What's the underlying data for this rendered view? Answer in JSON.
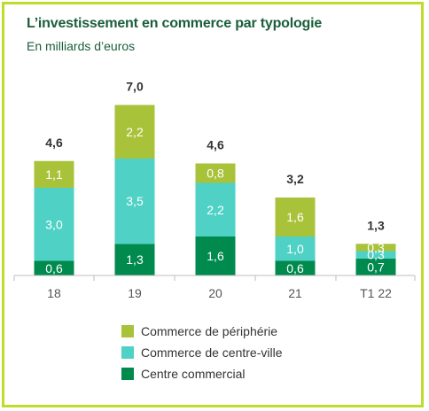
{
  "header": {
    "title": "L’investissement en commerce par typologie",
    "subtitle": "En milliards d’euros"
  },
  "colors": {
    "frame": "#bfdc2a",
    "title": "#1a5e3a"
  },
  "chart_data": {
    "type": "bar",
    "stacked": true,
    "title": "L’investissement en commerce par typologie",
    "subtitle": "En milliards d’euros",
    "categories": [
      "18",
      "19",
      "20",
      "21",
      "T1 22"
    ],
    "totals": [
      "4,6",
      "7,0",
      "4,6",
      "3,2",
      "1,3"
    ],
    "series": [
      {
        "name": "Centre commercial",
        "color": "#008a4e",
        "values": [
          0.6,
          1.3,
          1.6,
          0.6,
          0.7
        ],
        "labels": [
          "0,6",
          "1,3",
          "1,6",
          "0,6",
          "0,7"
        ]
      },
      {
        "name": "Commerce de centre-ville",
        "color": "#4fd1c5",
        "values": [
          3.0,
          3.5,
          2.2,
          1.0,
          0.3
        ],
        "labels": [
          "3,0",
          "3,5",
          "2,2",
          "1,0",
          "0,3"
        ]
      },
      {
        "name": "Commerce de périphérie",
        "color": "#a8c23a",
        "values": [
          1.1,
          2.2,
          0.8,
          1.6,
          0.3
        ],
        "labels": [
          "1,1",
          "2,2",
          "0,8",
          "1,6",
          "0,3"
        ]
      }
    ],
    "legend": {
      "position": "bottom",
      "order": [
        "Commerce de périphérie",
        "Commerce de centre-ville",
        "Centre commercial"
      ]
    },
    "ylim": [
      0,
      7
    ],
    "grid": false
  }
}
